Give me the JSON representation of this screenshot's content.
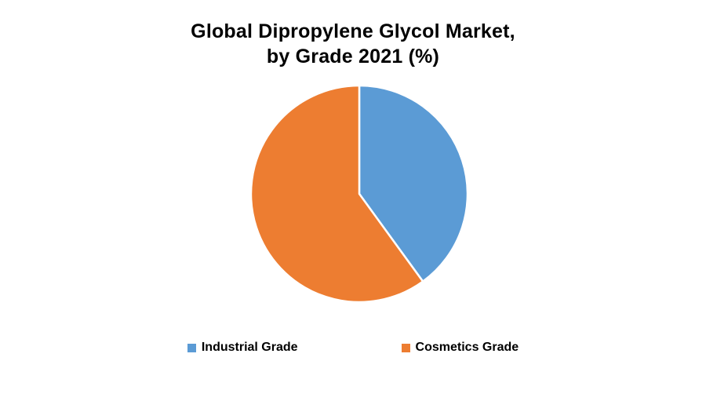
{
  "title": {
    "line1": "Global Dipropylene Glycol Market,",
    "line2": "by Grade 2021 (%)"
  },
  "chart_data": {
    "type": "pie",
    "title": "Global Dipropylene Glycol Market, by Grade 2021 (%)",
    "slices": [
      {
        "label": "Industrial Grade",
        "value": 40,
        "color": "#5B9BD5"
      },
      {
        "label": "Cosmetics Grade",
        "value": 60,
        "color": "#ED7D31"
      }
    ],
    "start_angle_deg": 0,
    "direction": "clockwise",
    "legend_position": "bottom",
    "slice_border_color": "#FFFFFF",
    "background_color": "#FFFFFF"
  }
}
